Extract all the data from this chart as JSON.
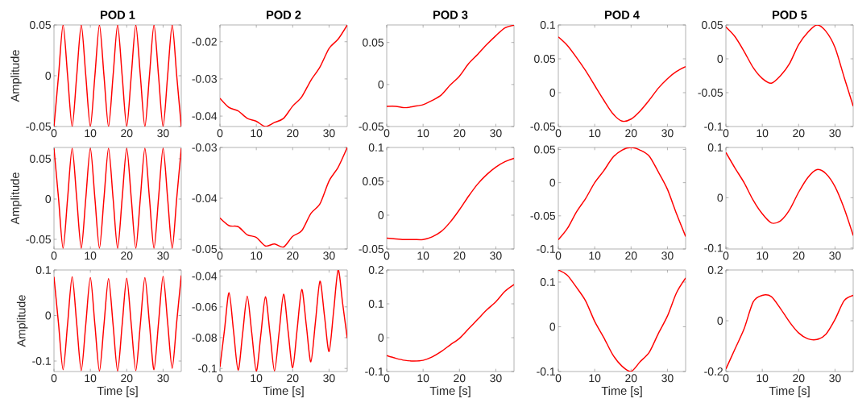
{
  "chart_data": [
    {
      "type": "line",
      "title": "POD 1",
      "ylabel": "Amplitude",
      "x": [
        0,
        1.25,
        2.5,
        3.75,
        5,
        6.25,
        7.5,
        8.75,
        10,
        11.25,
        12.5,
        13.75,
        15,
        16.25,
        17.5,
        18.75,
        20,
        21.25,
        22.5,
        23.75,
        25,
        26.25,
        27.5,
        28.75,
        30,
        31.25,
        32.5,
        33.75,
        35
      ],
      "series": [
        {
          "color": "#ff0000",
          "values": [
            -0.05,
            0,
            0.05,
            0,
            -0.05,
            0,
            0.05,
            0,
            -0.05,
            0,
            0.05,
            0,
            -0.05,
            0,
            0.05,
            0,
            -0.05,
            0,
            0.05,
            0,
            -0.05,
            0,
            0.05,
            0,
            -0.05,
            0,
            0.05,
            0,
            -0.05
          ]
        }
      ],
      "xlim": [
        0,
        35
      ],
      "ylim": [
        -0.05,
        0.05
      ],
      "xticks": [
        0,
        10,
        20,
        30
      ],
      "yticks": [
        -0.05,
        0,
        0.05
      ]
    },
    {
      "type": "line",
      "title": "POD 2",
      "x": [
        0,
        2.5,
        5,
        7.5,
        10,
        12.5,
        15,
        17.5,
        20,
        22.5,
        25,
        27.5,
        30,
        32.5,
        35
      ],
      "series": [
        {
          "color": "#ff0000",
          "values": [
            -0.0352,
            -0.0377,
            -0.0386,
            -0.0406,
            -0.0414,
            -0.0428,
            -0.0417,
            -0.0406,
            -0.0373,
            -0.0348,
            -0.0304,
            -0.0268,
            -0.0218,
            -0.0193,
            -0.0155
          ]
        }
      ],
      "xlim": [
        0,
        35
      ],
      "ylim": [
        -0.0428,
        -0.0155
      ],
      "xticks": [
        0,
        10,
        20,
        30
      ],
      "yticks": [
        -0.04,
        -0.03,
        -0.02
      ]
    },
    {
      "type": "line",
      "title": "POD 3",
      "x": [
        0,
        2.5,
        5,
        7.5,
        10,
        12.5,
        15,
        17.5,
        20,
        22.5,
        25,
        27.5,
        30,
        32.5,
        35
      ],
      "series": [
        {
          "color": "#ff0000",
          "values": [
            -0.026,
            -0.026,
            -0.0276,
            -0.026,
            -0.024,
            -0.019,
            -0.0125,
            -0.0005,
            0.01,
            0.0247,
            0.0358,
            0.0475,
            0.058,
            0.0673,
            0.0705
          ]
        }
      ],
      "xlim": [
        0,
        35
      ],
      "ylim": [
        -0.05,
        0.0708
      ],
      "xticks": [
        0,
        10,
        20,
        30
      ],
      "yticks": [
        -0.05,
        0,
        0.05
      ]
    },
    {
      "type": "line",
      "title": "POD 4",
      "x": [
        0,
        2.5,
        5,
        7.5,
        10,
        12.5,
        15,
        17.5,
        20,
        22.5,
        25,
        27.5,
        30,
        32.5,
        35
      ],
      "series": [
        {
          "color": "#ff0000",
          "values": [
            0.0823,
            0.0697,
            0.052,
            0.0325,
            0.0107,
            -0.011,
            -0.031,
            -0.042,
            -0.039,
            -0.027,
            -0.011,
            0.0067,
            0.0206,
            0.0313,
            0.0385
          ]
        }
      ],
      "xlim": [
        0,
        35
      ],
      "ylim": [
        -0.05,
        0.1
      ],
      "xticks": [
        0,
        10,
        20,
        30
      ],
      "yticks": [
        -0.05,
        0,
        0.05,
        0.1
      ]
    },
    {
      "type": "line",
      "title": "POD 5",
      "x": [
        0,
        2.5,
        5,
        7.5,
        10,
        12.5,
        15,
        17.5,
        20,
        22.5,
        25,
        27.5,
        30,
        32.5,
        35
      ],
      "series": [
        {
          "color": "#ff0000",
          "values": [
            0.047,
            0.0327,
            0.011,
            -0.013,
            -0.029,
            -0.036,
            -0.025,
            -0.007,
            0.021,
            0.039,
            0.05,
            0.0406,
            0.0167,
            -0.027,
            -0.07
          ]
        }
      ],
      "xlim": [
        0,
        35
      ],
      "ylim": [
        -0.1,
        0.05
      ],
      "xticks": [
        0,
        10,
        20,
        30
      ],
      "yticks": [
        -0.1,
        -0.05,
        0,
        0.05
      ]
    },
    {
      "type": "line",
      "ylabel": "Amplitude",
      "x": [
        0,
        1.25,
        2.5,
        3.75,
        5,
        6.25,
        7.5,
        8.75,
        10,
        11.25,
        12.5,
        13.75,
        15,
        16.25,
        17.5,
        18.75,
        20,
        21.25,
        22.5,
        23.75,
        25,
        26.25,
        27.5,
        28.75,
        30,
        31.25,
        32.5,
        33.75,
        35
      ],
      "series": [
        {
          "color": "#ff0000",
          "values": [
            0.063,
            0.001,
            -0.061,
            0.001,
            0.063,
            0.001,
            -0.061,
            0.001,
            0.063,
            0.001,
            -0.061,
            0.001,
            0.063,
            0.001,
            -0.061,
            0.001,
            0.063,
            0.001,
            -0.061,
            0.001,
            0.063,
            0.001,
            -0.061,
            0.001,
            0.063,
            0.001,
            -0.061,
            0.001,
            0.063
          ]
        }
      ],
      "xlim": [
        0,
        35
      ],
      "ylim": [
        -0.062,
        0.064
      ],
      "xticks": [
        0,
        10,
        20,
        30
      ],
      "yticks": [
        -0.05,
        0,
        0.05
      ]
    },
    {
      "type": "line",
      "x": [
        0,
        2.5,
        5,
        7.5,
        10,
        12.5,
        15,
        17.5,
        20,
        22.5,
        25,
        27.5,
        30,
        32.5,
        35
      ],
      "series": [
        {
          "color": "#ff0000",
          "values": [
            -0.0439,
            -0.0454,
            -0.0456,
            -0.0472,
            -0.0477,
            -0.0494,
            -0.049,
            -0.0496,
            -0.0475,
            -0.0464,
            -0.043,
            -0.0411,
            -0.0366,
            -0.0339,
            -0.03
          ]
        }
      ],
      "xlim": [
        0,
        35
      ],
      "ylim": [
        -0.05,
        -0.03
      ],
      "xticks": [
        0,
        10,
        20,
        30
      ],
      "yticks": [
        -0.05,
        -0.04,
        -0.03
      ]
    },
    {
      "type": "line",
      "x": [
        0,
        2.5,
        5,
        7.5,
        10,
        12.5,
        15,
        17.5,
        20,
        22.5,
        25,
        27.5,
        30,
        32.5,
        35
      ],
      "series": [
        {
          "color": "#ff0000",
          "values": [
            -0.034,
            -0.035,
            -0.036,
            -0.036,
            -0.036,
            -0.032,
            -0.024,
            -0.01,
            0.008,
            0.028,
            0.046,
            0.06,
            0.071,
            0.079,
            0.084
          ]
        }
      ],
      "xlim": [
        0,
        35
      ],
      "ylim": [
        -0.05,
        0.1
      ],
      "xticks": [
        0,
        10,
        20,
        30
      ],
      "yticks": [
        -0.05,
        0,
        0.05,
        0.1
      ]
    },
    {
      "type": "line",
      "x": [
        0,
        2.5,
        5,
        7.5,
        10,
        12.5,
        15,
        17.5,
        20,
        22.5,
        25,
        27.5,
        30,
        32.5,
        35
      ],
      "series": [
        {
          "color": "#ff0000",
          "values": [
            -0.086,
            -0.069,
            -0.044,
            -0.024,
            0.0,
            0.018,
            0.038,
            0.049,
            0.053,
            0.049,
            0.04,
            0.016,
            -0.01,
            -0.047,
            -0.081
          ]
        }
      ],
      "xlim": [
        0,
        35
      ],
      "ylim": [
        -0.1,
        0.053
      ],
      "xticks": [
        0,
        10,
        20,
        30
      ],
      "yticks": [
        -0.1,
        -0.05,
        0,
        0.05
      ]
    },
    {
      "type": "line",
      "x": [
        0,
        2.5,
        5,
        7.5,
        10,
        12.5,
        15,
        17.5,
        20,
        22.5,
        25,
        27.5,
        30,
        32.5,
        35
      ],
      "series": [
        {
          "color": "#ff0000",
          "values": [
            0.09,
            0.059,
            0.03,
            -0.005,
            -0.032,
            -0.05,
            -0.046,
            -0.024,
            0.011,
            0.04,
            0.056,
            0.048,
            0.022,
            -0.021,
            -0.075
          ]
        }
      ],
      "xlim": [
        0,
        35
      ],
      "ylim": [
        -0.102,
        0.1
      ],
      "xticks": [
        0,
        10,
        20,
        30
      ],
      "yticks": [
        -0.1,
        0,
        0.1
      ]
    },
    {
      "type": "line",
      "xlabel": "Time [s]",
      "ylabel": "Amplitude",
      "x": [
        0,
        1.25,
        2.5,
        3.75,
        5,
        6.25,
        7.5,
        8.75,
        10,
        11.25,
        12.5,
        13.75,
        15,
        16.25,
        17.5,
        18.75,
        20,
        21.25,
        22.5,
        23.75,
        25,
        26.25,
        27.5,
        28.75,
        30,
        31.25,
        32.5,
        33.75,
        35
      ],
      "series": [
        {
          "color": "#ff0000",
          "values": [
            0.085,
            -0.018,
            -0.119,
            -0.018,
            0.085,
            -0.018,
            -0.121,
            -0.019,
            0.083,
            -0.02,
            -0.122,
            -0.02,
            0.081,
            -0.02,
            -0.122,
            -0.02,
            0.082,
            -0.02,
            -0.121,
            -0.019,
            0.083,
            -0.018,
            -0.119,
            -0.016,
            0.086,
            -0.015,
            -0.116,
            -0.014,
            0.088
          ]
        }
      ],
      "xlim": [
        0,
        35
      ],
      "ylim": [
        -0.123,
        0.1
      ],
      "xticks": [
        0,
        10,
        20,
        30
      ],
      "yticks": [
        -0.1,
        0,
        0.1
      ]
    },
    {
      "type": "line",
      "xlabel": "Time [s]",
      "x": [
        0,
        1.25,
        2.5,
        3.75,
        5,
        6.25,
        7.5,
        8.75,
        10,
        11.25,
        12.5,
        13.75,
        15,
        16.25,
        17.5,
        18.75,
        20,
        21.25,
        22.5,
        23.75,
        25,
        26.25,
        27.5,
        28.75,
        30,
        31.25,
        32.5,
        33.75,
        35
      ],
      "series": [
        {
          "color": "#ff0000",
          "values": [
            -0.0991,
            -0.075,
            -0.0508,
            -0.076,
            -0.1012,
            -0.077,
            -0.053,
            -0.077,
            -0.1017,
            -0.078,
            -0.0534,
            -0.077,
            -0.1016,
            -0.077,
            -0.0517,
            -0.076,
            -0.0995,
            -0.074,
            -0.0487,
            -0.072,
            -0.0957,
            -0.07,
            -0.0433,
            -0.066,
            -0.089,
            -0.063,
            -0.036,
            -0.058,
            -0.0803
          ]
        }
      ],
      "xlim": [
        0,
        35
      ],
      "ylim": [
        -0.102,
        -0.036
      ],
      "xticks": [
        0,
        10,
        20,
        30
      ],
      "yticks": [
        -0.1,
        -0.08,
        -0.06,
        -0.04
      ]
    },
    {
      "type": "line",
      "xlabel": "Time [s]",
      "x": [
        0,
        2.5,
        5,
        7.5,
        10,
        12.5,
        15,
        17.5,
        20,
        22.5,
        25,
        27.5,
        30,
        32.5,
        35
      ],
      "series": [
        {
          "color": "#ff0000",
          "values": [
            -0.053,
            -0.061,
            -0.067,
            -0.069,
            -0.067,
            -0.057,
            -0.041,
            -0.021,
            -0.002,
            0.026,
            0.054,
            0.082,
            0.106,
            0.137,
            0.157
          ]
        }
      ],
      "xlim": [
        0,
        35
      ],
      "ylim": [
        -0.1,
        0.2
      ],
      "xticks": [
        0,
        10,
        20,
        30
      ],
      "yticks": [
        -0.1,
        0,
        0.1,
        0.2
      ]
    },
    {
      "type": "line",
      "xlabel": "Time [s]",
      "x": [
        0,
        2.5,
        5,
        7.5,
        10,
        12.5,
        15,
        17.5,
        20,
        22.5,
        25,
        27.5,
        30,
        32.5,
        35
      ],
      "series": [
        {
          "color": "#ff0000",
          "values": [
            0.127,
            0.115,
            0.088,
            0.058,
            0.012,
            -0.024,
            -0.063,
            -0.088,
            -0.1,
            -0.078,
            -0.057,
            -0.015,
            0.024,
            0.076,
            0.109
          ]
        }
      ],
      "xlim": [
        0,
        35
      ],
      "ylim": [
        -0.1,
        0.127
      ],
      "xticks": [
        0,
        10,
        20,
        30
      ],
      "yticks": [
        -0.1,
        0,
        0.1
      ]
    },
    {
      "type": "line",
      "xlabel": "Time [s]",
      "x": [
        0,
        2.5,
        5,
        7.5,
        10,
        12.5,
        15,
        17.5,
        20,
        22.5,
        25,
        27.5,
        30,
        32.5,
        35
      ],
      "series": [
        {
          "color": "#ff0000",
          "values": [
            -0.19,
            -0.111,
            -0.032,
            0.074,
            0.1,
            0.095,
            0.048,
            -0.005,
            -0.048,
            -0.071,
            -0.074,
            -0.053,
            0.005,
            0.079,
            0.1
          ]
        }
      ],
      "xlim": [
        0,
        35
      ],
      "ylim": [
        -0.2,
        0.2
      ],
      "xticks": [
        0,
        10,
        20,
        30
      ],
      "yticks": [
        -0.2,
        0,
        0.2
      ]
    }
  ]
}
